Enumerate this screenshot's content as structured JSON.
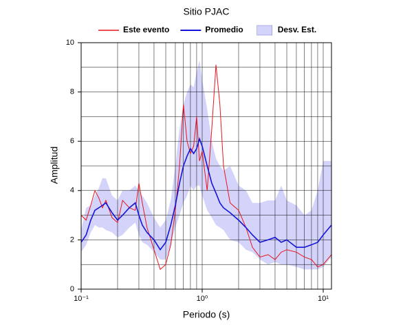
{
  "chart_data": {
    "type": "line",
    "title": "Sitio PJAC",
    "x_label": "Periodo (s)",
    "y_label": "Amplitud",
    "xscale": "log",
    "grid": true,
    "x": [
      0.1,
      0.11,
      0.12,
      0.13,
      0.14,
      0.15,
      0.16,
      0.18,
      0.2,
      0.22,
      0.25,
      0.28,
      0.3,
      0.32,
      0.35,
      0.4,
      0.45,
      0.5,
      0.55,
      0.6,
      0.65,
      0.7,
      0.75,
      0.8,
      0.85,
      0.9,
      0.95,
      1.0,
      1.1,
      1.2,
      1.3,
      1.4,
      1.5,
      1.7,
      2.0,
      2.3,
      2.6,
      3.0,
      3.5,
      4.0,
      4.5,
      5.0,
      6.0,
      7.0,
      8.0,
      9.0,
      10,
      11.7
    ],
    "band": {
      "name": "Desv. Est.",
      "color": "#d4d4fb",
      "upper": [
        2.4,
        3.3,
        3.4,
        3.8,
        4.1,
        4.5,
        4.5,
        3.8,
        3.6,
        4.0,
        4.0,
        4.2,
        4.0,
        3.8,
        3.5,
        2.9,
        2.5,
        2.8,
        3.6,
        5.0,
        6.5,
        7.5,
        8.0,
        8.3,
        8.2,
        8.8,
        9.3,
        8.5,
        7.3,
        6.0,
        5.3,
        5.0,
        4.8,
        5.0,
        4.2,
        4.0,
        3.5,
        3.5,
        3.6,
        3.6,
        4.2,
        3.6,
        3.4,
        3.0,
        3.2,
        4.0,
        5.2,
        5.2
      ],
      "lower": [
        1.5,
        1.8,
        2.3,
        2.6,
        2.5,
        2.5,
        2.4,
        2.3,
        2.1,
        2.2,
        2.5,
        2.7,
        2.2,
        1.9,
        1.8,
        1.5,
        1.2,
        1.2,
        1.8,
        2.5,
        3.0,
        3.5,
        3.8,
        4.2,
        4.0,
        4.2,
        4.2,
        3.8,
        3.2,
        2.9,
        2.6,
        2.5,
        2.4,
        2.0,
        1.9,
        1.6,
        1.5,
        1.2,
        1.0,
        1.1,
        1.0,
        1.0,
        0.9,
        0.8,
        0.8,
        0.8,
        0.9,
        1.3
      ]
    },
    "series": [
      {
        "name": "Este evento",
        "color": "#e8141c",
        "values": [
          3.0,
          2.8,
          3.4,
          4.0,
          3.7,
          3.3,
          3.6,
          2.9,
          2.7,
          3.6,
          3.3,
          3.2,
          4.3,
          3.5,
          2.5,
          1.6,
          0.8,
          1.0,
          1.8,
          3.2,
          5.0,
          7.5,
          6.0,
          5.5,
          5.8,
          7.0,
          5.2,
          5.6,
          4.0,
          6.5,
          9.1,
          7.5,
          5.0,
          3.5,
          3.2,
          2.5,
          1.7,
          1.3,
          1.4,
          1.2,
          1.5,
          1.6,
          1.5,
          1.3,
          1.2,
          0.9,
          1.0,
          1.4
        ]
      },
      {
        "name": "Promedio",
        "color": "#1414d8",
        "values": [
          1.9,
          2.2,
          2.8,
          3.2,
          3.3,
          3.4,
          3.5,
          3.1,
          2.8,
          3.0,
          3.3,
          3.5,
          3.0,
          2.6,
          2.3,
          2.0,
          1.6,
          1.9,
          2.6,
          3.4,
          4.3,
          5.0,
          5.4,
          5.7,
          5.5,
          5.7,
          6.1,
          5.8,
          5.0,
          4.3,
          3.9,
          3.5,
          3.3,
          3.1,
          2.8,
          2.5,
          2.2,
          1.9,
          2.0,
          2.1,
          1.9,
          2.0,
          1.7,
          1.7,
          1.8,
          1.9,
          2.2,
          2.6
        ]
      }
    ],
    "xlim": [
      0.1,
      11.7
    ],
    "ylim": [
      0,
      10
    ],
    "xticks": [
      {
        "value": 0.1,
        "label": "10⁻¹"
      },
      {
        "value": 1,
        "label": "10⁰"
      },
      {
        "value": 10,
        "label": "10¹"
      }
    ],
    "xminorticks": [
      0.2,
      0.3,
      0.4,
      0.5,
      0.6,
      0.7,
      0.8,
      0.9,
      2,
      3,
      4,
      5,
      6,
      7,
      8,
      9
    ],
    "yticks": [
      0,
      2,
      4,
      6,
      8,
      10
    ],
    "yminorticks": [
      1,
      3,
      5,
      7,
      9
    ]
  }
}
